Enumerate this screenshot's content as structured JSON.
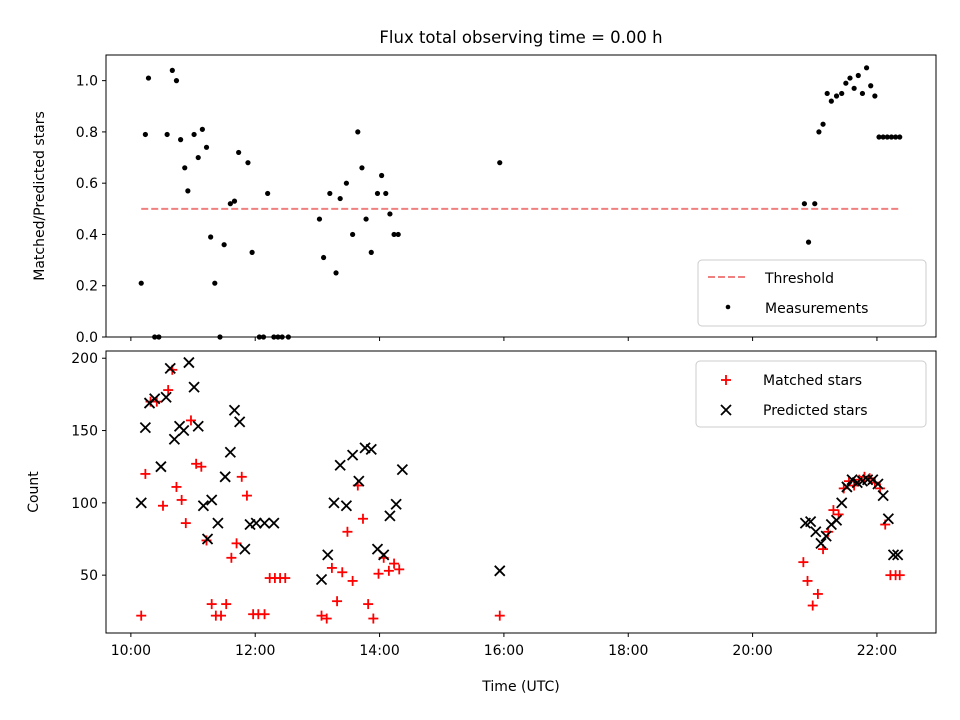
{
  "chart_data": [
    {
      "type": "scatter",
      "title": "Flux total observing time = 0.00 h",
      "xlabel": "",
      "ylabel": "Matched/Predicted stars",
      "xlim": [
        "09:36",
        "22:57"
      ],
      "ylim": [
        0.0,
        1.1
      ],
      "yticks": [
        "0.0",
        "0.2",
        "0.4",
        "0.6",
        "0.8",
        "1.0"
      ],
      "xticks": [
        "10:00",
        "12:00",
        "14:00",
        "16:00",
        "18:00",
        "20:00",
        "22:00"
      ],
      "x_tick_labels_visible": false,
      "legend": {
        "placement": "lower-right",
        "entries": [
          "Threshold",
          "Measurements"
        ]
      },
      "threshold": {
        "name": "Threshold",
        "y": 0.5,
        "x_range": [
          "10:10",
          "22:21"
        ],
        "color": "#f08080",
        "style": "dashed"
      },
      "series": [
        {
          "name": "Measurements",
          "color": "#000000",
          "marker": "point",
          "x": [
            "10:10",
            "10:14",
            "10:17",
            "10:23",
            "10:27",
            "10:35",
            "10:40",
            "10:44",
            "10:48",
            "10:52",
            "10:55",
            "11:01",
            "11:05",
            "11:09",
            "11:13",
            "11:17",
            "11:21",
            "11:26",
            "11:30",
            "11:36",
            "11:40",
            "11:44",
            "11:53",
            "11:57",
            "12:04",
            "12:08",
            "12:12",
            "12:18",
            "12:22",
            "12:26",
            "12:32",
            "13:02",
            "13:06",
            "13:12",
            "13:18",
            "13:22",
            "13:28",
            "13:34",
            "13:39",
            "13:43",
            "13:47",
            "13:52",
            "13:58",
            "14:02",
            "14:06",
            "14:10",
            "14:14",
            "14:18",
            "15:56",
            "20:50",
            "20:54",
            "21:00",
            "21:04",
            "21:08",
            "21:12",
            "21:16",
            "21:21",
            "21:26",
            "21:30",
            "21:34",
            "21:38",
            "21:42",
            "21:46",
            "21:50",
            "21:54",
            "21:58",
            "22:02",
            "22:06",
            "22:10",
            "22:14",
            "22:18",
            "22:22"
          ],
          "y": [
            0.21,
            0.79,
            1.01,
            0.0,
            0.0,
            0.79,
            1.04,
            1.0,
            0.77,
            0.66,
            0.57,
            0.79,
            0.7,
            0.81,
            0.74,
            0.39,
            0.21,
            0.0,
            0.36,
            0.52,
            0.53,
            0.72,
            0.68,
            0.33,
            0.0,
            0.0,
            0.56,
            0.0,
            0.0,
            0.0,
            0.0,
            0.46,
            0.31,
            0.56,
            0.25,
            0.54,
            0.6,
            0.4,
            0.8,
            0.66,
            0.46,
            0.33,
            0.56,
            0.63,
            0.56,
            0.48,
            0.4,
            0.4,
            0.68,
            0.52,
            0.37,
            0.52,
            0.8,
            0.83,
            0.95,
            0.92,
            0.94,
            0.95,
            0.99,
            1.01,
            0.97,
            1.02,
            0.95,
            1.05,
            0.98,
            0.94,
            0.78,
            0.78,
            0.78,
            0.78,
            0.78,
            0.78
          ]
        }
      ]
    },
    {
      "type": "scatter",
      "title": "",
      "xlabel": "Time (UTC)",
      "ylabel": "Count",
      "xlim": [
        "09:36",
        "22:57"
      ],
      "ylim": [
        10,
        205
      ],
      "yticks": [
        "50",
        "100",
        "150",
        "200"
      ],
      "xticks": [
        "10:00",
        "12:00",
        "14:00",
        "16:00",
        "18:00",
        "20:00",
        "22:00"
      ],
      "legend": {
        "placement": "top-right",
        "entries": [
          "Matched stars",
          "Predicted stars"
        ]
      },
      "series": [
        {
          "name": "Matched stars",
          "color": "#ff0000",
          "marker": "plus",
          "x": [
            "10:10",
            "10:14",
            "10:19",
            "10:25",
            "10:31",
            "10:36",
            "10:40",
            "10:44",
            "10:49",
            "10:53",
            "10:58",
            "11:03",
            "11:08",
            "11:13",
            "11:18",
            "11:22",
            "11:27",
            "11:32",
            "11:37",
            "11:42",
            "11:47",
            "11:52",
            "11:58",
            "12:03",
            "12:09",
            "12:14",
            "12:19",
            "12:24",
            "12:29",
            "13:04",
            "13:09",
            "13:14",
            "13:19",
            "13:24",
            "13:29",
            "13:34",
            "13:39",
            "13:44",
            "13:49",
            "13:54",
            "13:59",
            "14:04",
            "14:09",
            "14:14",
            "14:19",
            "15:56",
            "20:49",
            "20:53",
            "20:58",
            "21:03",
            "21:08",
            "21:13",
            "21:18",
            "21:23",
            "21:28",
            "21:33",
            "21:38",
            "21:43",
            "21:48",
            "21:53",
            "21:58",
            "22:03",
            "22:08",
            "22:13",
            "22:18",
            "22:22"
          ],
          "y": [
            22,
            120,
            170,
            170,
            98,
            178,
            192,
            111,
            102,
            86,
            157,
            127,
            125,
            74,
            30,
            22,
            22,
            30,
            62,
            72,
            118,
            105,
            23,
            23,
            23,
            48,
            48,
            48,
            48,
            22,
            20,
            55,
            32,
            52,
            80,
            46,
            112,
            89,
            30,
            20,
            51,
            62,
            53,
            58,
            54,
            22,
            59,
            46,
            29,
            37,
            68,
            80,
            95,
            92,
            110,
            115,
            112,
            116,
            118,
            117,
            114,
            110,
            85,
            50,
            50,
            50
          ]
        },
        {
          "name": "Predicted stars",
          "color": "#000000",
          "marker": "x",
          "x": [
            "10:10",
            "10:14",
            "10:18",
            "10:23",
            "10:29",
            "10:34",
            "10:38",
            "10:42",
            "10:47",
            "10:51",
            "10:56",
            "11:01",
            "11:05",
            "11:10",
            "11:14",
            "11:18",
            "11:24",
            "11:31",
            "11:36",
            "11:40",
            "11:45",
            "11:50",
            "11:55",
            "12:01",
            "12:09",
            "12:18",
            "13:04",
            "13:10",
            "13:16",
            "13:22",
            "13:28",
            "13:34",
            "13:40",
            "13:46",
            "13:52",
            "13:58",
            "14:04",
            "14:10",
            "14:16",
            "14:22",
            "15:56",
            "20:51",
            "20:56",
            "21:01",
            "21:06",
            "21:11",
            "21:16",
            "21:21",
            "21:26",
            "21:31",
            "21:36",
            "21:41",
            "21:46",
            "21:51",
            "21:56",
            "22:01",
            "22:06",
            "22:11",
            "22:16",
            "22:20"
          ],
          "y": [
            100,
            152,
            169,
            172,
            125,
            173,
            193,
            144,
            153,
            150,
            197,
            180,
            153,
            98,
            75,
            102,
            86,
            118,
            135,
            164,
            156,
            68,
            85,
            86,
            86,
            86,
            47,
            64,
            100,
            126,
            98,
            133,
            115,
            138,
            137,
            68,
            64,
            91,
            99,
            123,
            53,
            86,
            87,
            80,
            72,
            77,
            85,
            88,
            100,
            111,
            116,
            114,
            115,
            116,
            116,
            113,
            105,
            89,
            64,
            64
          ]
        }
      ]
    }
  ]
}
